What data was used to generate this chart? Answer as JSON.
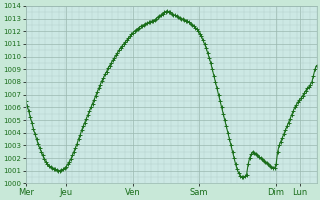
{
  "title": "",
  "bg_color": "#c8e8d8",
  "plot_bg_color": "#cce8e4",
  "line_color": "#1a6e1a",
  "marker": "+",
  "marker_size": 3,
  "linewidth": 0.8,
  "ylim": [
    1000,
    1014
  ],
  "yticks": [
    1000,
    1001,
    1002,
    1003,
    1004,
    1005,
    1006,
    1007,
    1008,
    1009,
    1010,
    1011,
    1012,
    1013,
    1014
  ],
  "xtick_labels": [
    "Mer",
    "Jeu",
    "Ven",
    "Sam",
    "Dim",
    "Lun"
  ],
  "grid_color": "#9ab8b0",
  "minor_grid_color": "#b0ccc8",
  "y_data": [
    1006.5,
    1006.1,
    1005.7,
    1005.2,
    1004.8,
    1004.3,
    1003.9,
    1003.5,
    1003.1,
    1002.8,
    1002.5,
    1002.2,
    1001.9,
    1001.7,
    1001.5,
    1001.4,
    1001.3,
    1001.2,
    1001.15,
    1001.1,
    1001.05,
    1001.0,
    1001.0,
    1001.05,
    1001.1,
    1001.2,
    1001.3,
    1001.5,
    1001.7,
    1001.9,
    1002.2,
    1002.5,
    1002.8,
    1003.1,
    1003.5,
    1003.8,
    1004.2,
    1004.5,
    1004.8,
    1005.1,
    1005.4,
    1005.7,
    1006.0,
    1006.3,
    1006.6,
    1006.9,
    1007.2,
    1007.5,
    1007.8,
    1008.1,
    1008.3,
    1008.6,
    1008.8,
    1009.1,
    1009.3,
    1009.5,
    1009.7,
    1009.9,
    1010.1,
    1010.3,
    1010.5,
    1010.7,
    1010.85,
    1011.0,
    1011.15,
    1011.3,
    1011.45,
    1011.6,
    1011.75,
    1011.9,
    1012.0,
    1012.1,
    1012.2,
    1012.3,
    1012.4,
    1012.45,
    1012.5,
    1012.6,
    1012.65,
    1012.7,
    1012.75,
    1012.8,
    1012.85,
    1012.9,
    1013.0,
    1013.1,
    1013.2,
    1013.3,
    1013.4,
    1013.5,
    1013.55,
    1013.6,
    1013.55,
    1013.5,
    1013.4,
    1013.3,
    1013.25,
    1013.2,
    1013.1,
    1013.05,
    1013.0,
    1012.95,
    1012.9,
    1012.85,
    1012.8,
    1012.7,
    1012.6,
    1012.5,
    1012.4,
    1012.3,
    1012.2,
    1012.0,
    1011.8,
    1011.6,
    1011.3,
    1011.0,
    1010.7,
    1010.3,
    1009.9,
    1009.5,
    1009.0,
    1008.5,
    1008.0,
    1007.5,
    1007.0,
    1006.5,
    1006.0,
    1005.5,
    1005.0,
    1004.5,
    1004.0,
    1003.5,
    1003.0,
    1002.5,
    1002.0,
    1001.5,
    1001.1,
    1000.8,
    1000.6,
    1000.5,
    1000.5,
    1000.55,
    1000.65,
    1001.5,
    1002.0,
    1002.3,
    1002.5,
    1002.4,
    1002.3,
    1002.2,
    1002.1,
    1002.0,
    1001.9,
    1001.8,
    1001.7,
    1001.6,
    1001.5,
    1001.4,
    1001.3,
    1001.25,
    1001.2,
    1001.5,
    1002.5,
    1003.0,
    1003.3,
    1003.6,
    1003.9,
    1004.2,
    1004.5,
    1004.8,
    1005.1,
    1005.4,
    1005.7,
    1006.0,
    1006.2,
    1006.4,
    1006.6,
    1006.7,
    1006.9,
    1007.1,
    1007.3,
    1007.5,
    1007.6,
    1007.8,
    1008.0,
    1008.5,
    1009.0,
    1009.3
  ],
  "xtick_positions_frac": [
    0.0,
    0.138,
    0.368,
    0.596,
    0.861,
    0.944
  ]
}
